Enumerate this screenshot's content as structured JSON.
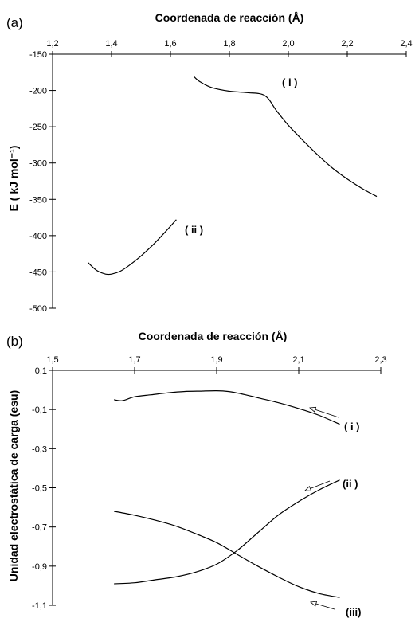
{
  "chart_data": [
    {
      "type": "line",
      "panel_label": "(a)",
      "title": "",
      "xlabel": "Coordenada de reacción (Å)",
      "ylabel": "E ( kJ mol⁻¹)",
      "x_axis_position": "top",
      "xlim": [
        1.2,
        2.4
      ],
      "ylim": [
        -500,
        -150
      ],
      "x_ticks": [
        "1,2",
        "1,4",
        "1,6",
        "1,8",
        "2,0",
        "2,2",
        "2,4"
      ],
      "x_tick_values": [
        1.2,
        1.4,
        1.6,
        1.8,
        2.0,
        2.2,
        2.4
      ],
      "y_ticks": [
        "-150",
        "-200",
        "-250",
        "-300",
        "-350",
        "-400",
        "-450",
        "-500"
      ],
      "y_tick_values": [
        -150,
        -200,
        -250,
        -300,
        -350,
        -400,
        -450,
        -500
      ],
      "grid": false,
      "series": [
        {
          "name": "( i )",
          "x": [
            1.68,
            1.7,
            1.74,
            1.8,
            1.86,
            1.92,
            1.96,
            2.0,
            2.05,
            2.1,
            2.15,
            2.2,
            2.25,
            2.3
          ],
          "y": [
            -181,
            -188,
            -196,
            -201,
            -203,
            -207,
            -228,
            -248,
            -269,
            -289,
            -307,
            -322,
            -335,
            -346
          ]
        },
        {
          "name": "( ii )",
          "x": [
            1.32,
            1.35,
            1.38,
            1.4,
            1.43,
            1.46,
            1.5,
            1.54,
            1.58,
            1.62
          ],
          "y": [
            -437,
            -448,
            -453,
            -453,
            -449,
            -441,
            -428,
            -413,
            -396,
            -378
          ]
        }
      ]
    },
    {
      "type": "line",
      "panel_label": "(b)",
      "title": "",
      "xlabel": "Coordenada de reacción (Å)",
      "ylabel": "Unidad electrostática de carga  (esu)",
      "x_axis_position": "top",
      "xlim": [
        1.5,
        2.3
      ],
      "ylim": [
        -1.1,
        0.1
      ],
      "x_ticks": [
        "1,5",
        "1,7",
        "1,9",
        "2,1",
        "2,3"
      ],
      "x_tick_values": [
        1.5,
        1.7,
        1.9,
        2.1,
        2.3
      ],
      "y_ticks": [
        "0,1",
        "-0,1",
        "-0,3",
        "-0,5",
        "-0,7",
        "-0,9",
        "-1,1"
      ],
      "y_tick_values": [
        0.1,
        -0.1,
        -0.3,
        -0.5,
        -0.7,
        -0.9,
        -1.1
      ],
      "grid": false,
      "series": [
        {
          "name": "( i )",
          "x": [
            1.65,
            1.67,
            1.7,
            1.74,
            1.78,
            1.82,
            1.86,
            1.9,
            1.93,
            1.96,
            2.0,
            2.05,
            2.1,
            2.15,
            2.2
          ],
          "y": [
            -0.05,
            -0.055,
            -0.035,
            -0.025,
            -0.015,
            -0.008,
            -0.006,
            -0.004,
            -0.008,
            -0.02,
            -0.04,
            -0.065,
            -0.095,
            -0.13,
            -0.175
          ]
        },
        {
          "name": "(ii )",
          "x": [
            1.65,
            1.7,
            1.75,
            1.8,
            1.85,
            1.9,
            1.95,
            2.0,
            2.05,
            2.1,
            2.15,
            2.2
          ],
          "y": [
            -0.99,
            -0.985,
            -0.97,
            -0.955,
            -0.93,
            -0.89,
            -0.82,
            -0.73,
            -0.64,
            -0.57,
            -0.51,
            -0.46
          ]
        },
        {
          "name": "(iii)",
          "x": [
            1.65,
            1.7,
            1.75,
            1.8,
            1.85,
            1.9,
            1.95,
            2.0,
            2.05,
            2.1,
            2.15,
            2.2
          ],
          "y": [
            -0.62,
            -0.64,
            -0.665,
            -0.695,
            -0.735,
            -0.78,
            -0.84,
            -0.9,
            -0.955,
            -1.005,
            -1.04,
            -1.06
          ]
        }
      ]
    }
  ]
}
